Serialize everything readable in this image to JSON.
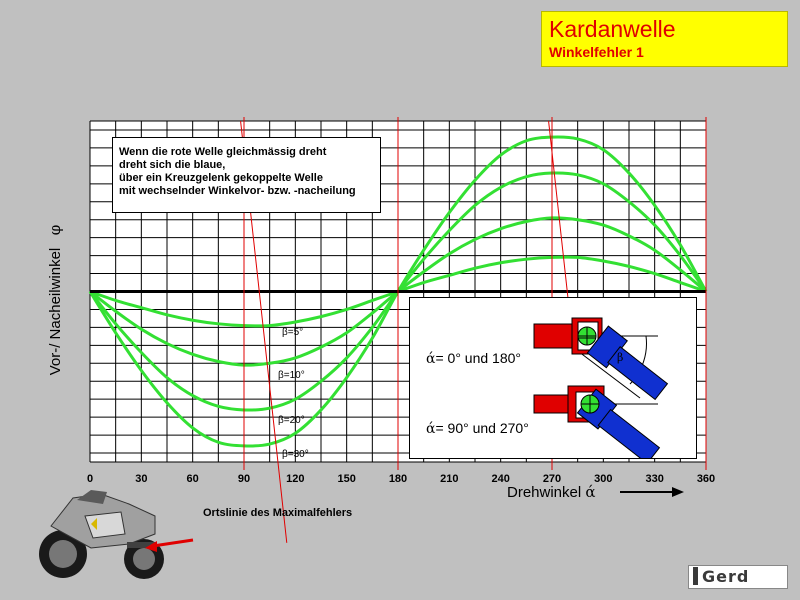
{
  "title": {
    "main": "Kardanwelle",
    "sub": "Winkelfehler 1"
  },
  "description_lines": [
    "Wenn die rote Welle gleichmässig dreht",
    "dreht sich die blaue,",
    "über ein Kreuzgelenk gekoppelte Welle",
    "mit wechselnder Winkelvor- bzw. -nacheilung"
  ],
  "inset": {
    "label_0_180": "= 0° und 180°",
    "label_90_270": "= 90° und 270°",
    "alpha_symbol": "ά"
  },
  "locus_label": "Ortslinie des Maximalfehlers",
  "logo_text": "Gerd",
  "colors": {
    "background": "#c0c0c0",
    "curve": "#33e033",
    "gridline": "#000000",
    "marker_line": "#e00000",
    "title_bg": "#ffff00",
    "title_text": "#e00000",
    "red_shaft": "#e00000",
    "blue_shaft": "#1030d0"
  },
  "chart_data": {
    "type": "line",
    "x": [
      0,
      15,
      30,
      45,
      60,
      75,
      90,
      105,
      120,
      135,
      150,
      165,
      180,
      195,
      210,
      225,
      240,
      255,
      270,
      285,
      300,
      315,
      330,
      345,
      360
    ],
    "xticks": [
      "0",
      "30",
      "60",
      "90",
      "120",
      "150",
      "180",
      "210",
      "240",
      "270",
      "300",
      "330",
      "360"
    ],
    "xlabel": "Drehwinkel",
    "xlabel_symbol": "ά",
    "ylabel": "Vor-/ Nacheilwinkel",
    "ylabel_symbol": "φ",
    "xlim": [
      0,
      360
    ],
    "ylim": [
      -9.5,
      9.5
    ],
    "grid": true,
    "series": [
      {
        "name": "β=5°",
        "label": "β=5°",
        "values": [
          0,
          -0.5,
          -0.9,
          -1.3,
          -1.6,
          -1.8,
          -1.9,
          -1.9,
          -1.7,
          -1.4,
          -1.0,
          -0.5,
          0,
          0.5,
          0.9,
          1.3,
          1.6,
          1.8,
          1.9,
          1.9,
          1.7,
          1.4,
          1.0,
          0.5,
          0
        ]
      },
      {
        "name": "β=10°",
        "label": "β=10°",
        "values": [
          0,
          -1.1,
          -2.1,
          -2.9,
          -3.5,
          -3.9,
          -4.1,
          -4.0,
          -3.7,
          -3.1,
          -2.3,
          -1.2,
          0,
          1.1,
          2.1,
          2.9,
          3.5,
          3.9,
          4.1,
          4.0,
          3.7,
          3.1,
          2.3,
          1.2,
          0
        ]
      },
      {
        "name": "β=20°",
        "label": "β=20°",
        "values": [
          0,
          -1.8,
          -3.4,
          -4.8,
          -5.8,
          -6.4,
          -6.6,
          -6.5,
          -6.0,
          -5.0,
          -3.7,
          -2.0,
          0,
          1.8,
          3.4,
          4.8,
          5.8,
          6.4,
          6.6,
          6.5,
          6.0,
          5.0,
          3.7,
          2.0,
          0
        ]
      },
      {
        "name": "β=30°",
        "label": "β=30°",
        "values": [
          0,
          -2.3,
          -4.4,
          -6.2,
          -7.6,
          -8.4,
          -8.6,
          -8.5,
          -7.9,
          -6.6,
          -4.8,
          -2.6,
          0,
          2.3,
          4.4,
          6.2,
          7.6,
          8.4,
          8.6,
          8.5,
          7.9,
          6.6,
          4.8,
          2.6,
          0
        ]
      }
    ],
    "marker_lines_x": [
      90,
      180,
      270,
      360
    ],
    "locus": {
      "note": "Ortslinie des Maximalfehlers",
      "points": [
        [
          88,
          9.5
        ],
        [
          115,
          -14
        ]
      ]
    }
  }
}
